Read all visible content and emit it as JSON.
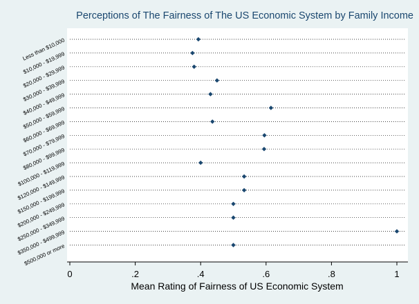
{
  "chart_data": {
    "type": "scatter",
    "title": "Perceptions of The Fairness of The US Economic System by Family Income",
    "xlabel": "Mean Rating of Fairness of US Economic System",
    "ylabel": "",
    "xlim": [
      0,
      1
    ],
    "xticks": [
      0,
      0.2,
      0.4,
      0.6,
      0.8,
      1
    ],
    "xtick_labels": [
      "0",
      ".2",
      ".4",
      ".6",
      ".8",
      "1"
    ],
    "grid": "dotted horizontal",
    "categories": [
      "Less than $10,000",
      "$10,000 - $19,999",
      "$20,000 - $29,999",
      "$30,000 - $39,999",
      "$40,000 - $49,999",
      "$50,000 - $59,999",
      "$60,000 - $69,999",
      "$70,000 - $79,999",
      "$80,000 - $99,999",
      "$100,000 - $119,999",
      "$120,000 - $149,999",
      "$150,000 - $199,999",
      "$200,000 - $249,999",
      "$250,000 - $349,999",
      "$350,000 - $499,999",
      "$500,000 or more"
    ],
    "values": [
      0.393,
      0.375,
      0.38,
      0.45,
      0.43,
      0.615,
      0.436,
      0.595,
      0.594,
      0.4,
      0.533,
      0.533,
      0.5,
      0.5,
      1.0,
      0.5
    ],
    "colors": {
      "background": "#eaf2f3",
      "plot": "#ffffff",
      "title": "#1a476f",
      "marker": "#1a476f",
      "grid": "#000000"
    }
  }
}
